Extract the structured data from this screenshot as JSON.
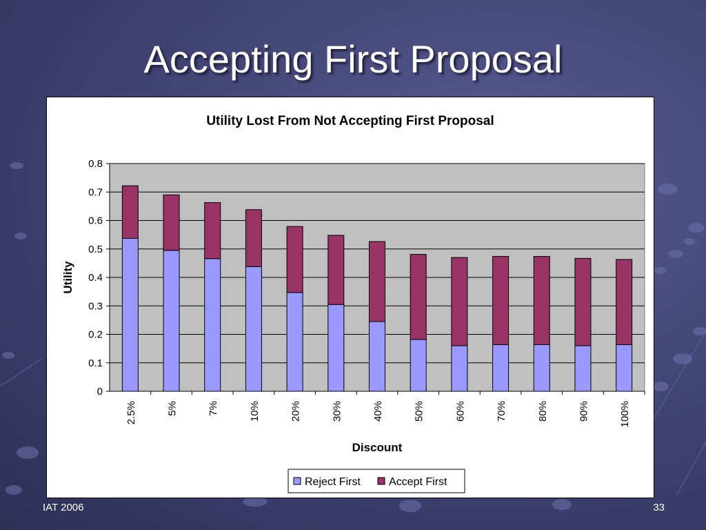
{
  "slide": {
    "title": "Accepting First Proposal",
    "footer_left": "IAT 2006",
    "page_number": "33"
  },
  "colors": {
    "reject_first": "#9999ff",
    "accept_first": "#993366",
    "plot_bg": "#c0c0c0"
  },
  "chart_data": {
    "type": "bar",
    "stacked": true,
    "title": "Utility Lost From Not Accepting First Proposal",
    "xlabel": "Discount",
    "ylabel": "Utility",
    "ylim": [
      0,
      0.8
    ],
    "yticks": [
      "0",
      "0.1",
      "0.2",
      "0.3",
      "0.4",
      "0.5",
      "0.6",
      "0.7",
      "0.8"
    ],
    "categories": [
      "2.5%",
      "5%",
      "7%",
      "10%",
      "20%",
      "30%",
      "40%",
      "50%",
      "60%",
      "70%",
      "80%",
      "90%",
      "100%"
    ],
    "series": [
      {
        "name": "Reject First",
        "values": [
          0.537,
          0.495,
          0.466,
          0.438,
          0.347,
          0.305,
          0.245,
          0.182,
          0.16,
          0.164,
          0.164,
          0.16,
          0.164
        ]
      },
      {
        "name": "Accept First",
        "values": [
          0.185,
          0.195,
          0.197,
          0.2,
          0.232,
          0.243,
          0.281,
          0.299,
          0.31,
          0.31,
          0.31,
          0.307,
          0.299
        ]
      }
    ],
    "legend": "bottom",
    "grid": true
  }
}
